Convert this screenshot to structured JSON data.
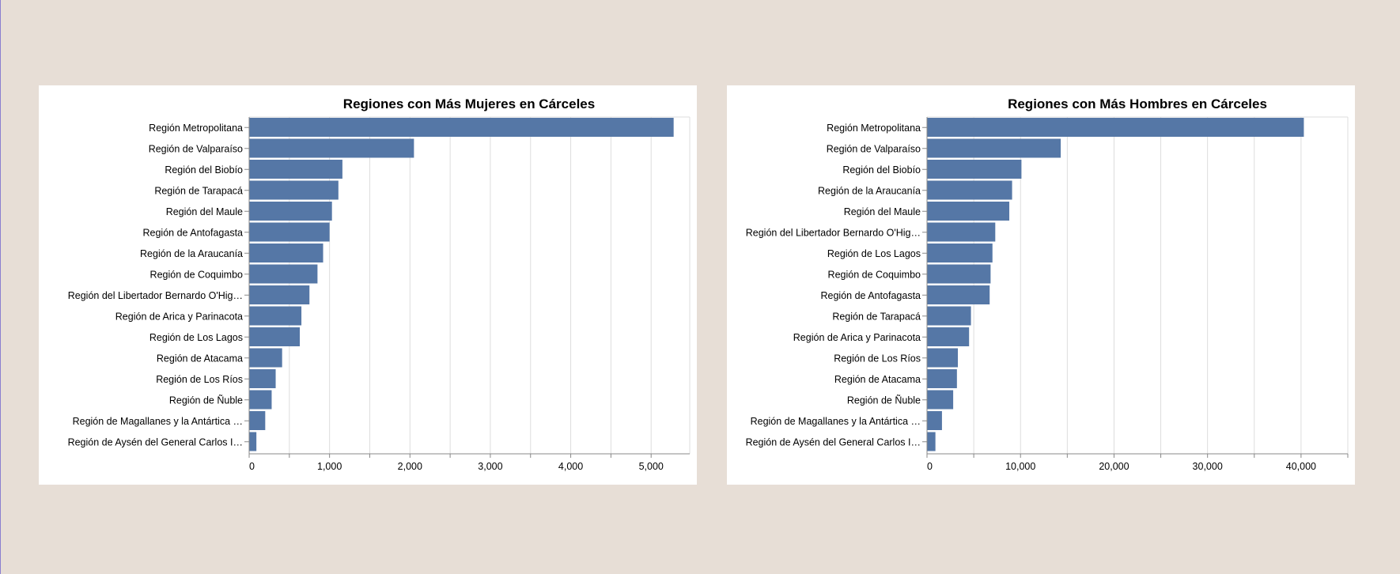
{
  "chart_data": [
    {
      "type": "bar",
      "orientation": "horizontal",
      "title": "Regiones con Más Mujeres en Cárceles",
      "categories": [
        "Región Metropolitana",
        "Región de Valparaíso",
        "Región del Biobío",
        "Región de Tarapacá",
        "Región del Maule",
        "Región de Antofagasta",
        "Región de la Araucanía",
        "Región de Coquimbo",
        "Región del Libertador Bernardo O'Hig…",
        "Región de Arica y Parinacota",
        "Región de Los Lagos",
        "Región de Atacama",
        "Región de Los Ríos",
        "Región de Ñuble",
        "Región de Magallanes y la Antártica …",
        "Región de Aysén del General Carlos I…"
      ],
      "values": [
        5280,
        2050,
        1160,
        1110,
        1030,
        1000,
        920,
        850,
        750,
        650,
        630,
        410,
        330,
        280,
        200,
        90
      ],
      "xlim": [
        0,
        5480
      ],
      "xticks": [
        0,
        1000,
        2000,
        3000,
        4000,
        5000
      ],
      "xtick_labels": [
        "0",
        "1,000",
        "2,000",
        "3,000",
        "4,000",
        "5,000"
      ],
      "grid": true
    },
    {
      "type": "bar",
      "orientation": "horizontal",
      "title": "Regiones con Más Hombres en Cárceles",
      "categories": [
        "Región Metropolitana",
        "Región de Valparaíso",
        "Región del Biobío",
        "Región de la Araucanía",
        "Región del Maule",
        "Región del Libertador Bernardo O'Hig…",
        "Región de Los Lagos",
        "Región de Coquimbo",
        "Región de Antofagasta",
        "Región de Tarapacá",
        "Región de Arica y Parinacota",
        "Región de Los Ríos",
        "Región de Atacama",
        "Región de Ñuble",
        "Región de Magallanes y la Antártica …",
        "Región de Aysén del General Carlos I…"
      ],
      "values": [
        40300,
        14300,
        10100,
        9100,
        8800,
        7300,
        7000,
        6800,
        6700,
        4700,
        4500,
        3300,
        3200,
        2800,
        1600,
        900
      ],
      "xlim": [
        0,
        45000
      ],
      "xticks": [
        0,
        10000,
        20000,
        30000,
        40000
      ],
      "xtick_labels": [
        "0",
        "10,000",
        "20,000",
        "30,000",
        "40,000"
      ],
      "grid": true
    }
  ],
  "colors": {
    "bar": "#5577a6",
    "background": "#e7ded6",
    "panel": "#ffffff",
    "grid": "#dddddd"
  }
}
